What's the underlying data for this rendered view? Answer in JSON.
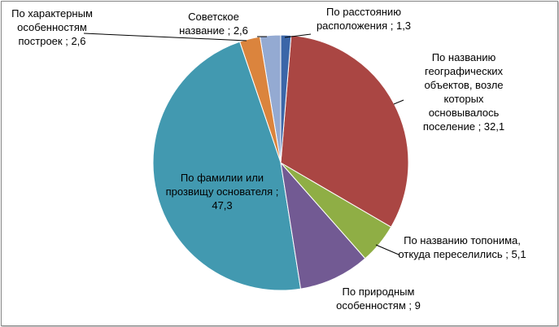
{
  "chart_data": {
    "type": "pie",
    "categories": [
      "По расстоянию расположения",
      "По названию географических объектов, возле которых основывалось поселение",
      "По названию топонима, откуда переселились",
      "По природным особенностям",
      "По фамилии или прозвищу основателя",
      "По характерным особенностям построек",
      "Советское название"
    ],
    "values": [
      1.3,
      32.1,
      5.1,
      9,
      47.3,
      2.6,
      2.6
    ],
    "value_labels": [
      "1,3",
      "32,1",
      "5,1",
      "9",
      "47,3",
      "2,6",
      "2,6"
    ],
    "label_separator": " ; ",
    "colors": [
      "#3b66a8",
      "#aa4643",
      "#8fae45",
      "#725a93",
      "#4299b0",
      "#db843d",
      "#94aad2"
    ]
  }
}
